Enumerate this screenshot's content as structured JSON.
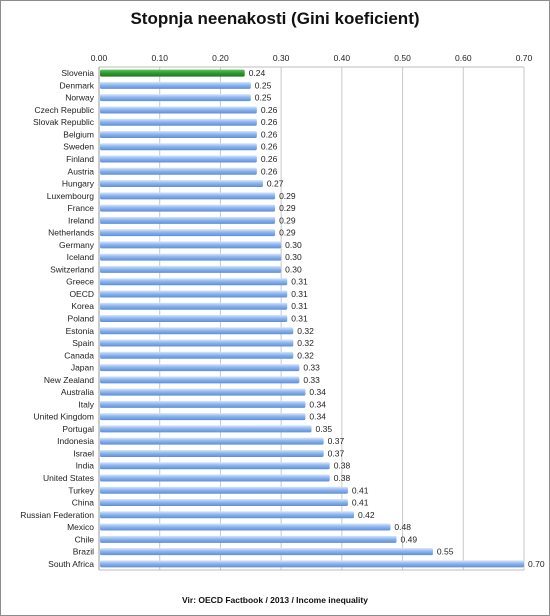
{
  "chart_data": {
    "type": "bar",
    "orientation": "horizontal",
    "title": "Stopnja neenakosti (Gini koeficient)",
    "source": "Vir: OECD Factbook / 2013 / Income inequality",
    "xlim": [
      0,
      0.7
    ],
    "xticks": [
      "0.00",
      "0.10",
      "0.20",
      "0.30",
      "0.40",
      "0.50",
      "0.60",
      "0.70"
    ],
    "grid": true,
    "highlight_color": "#2e9a2e",
    "bar_color": "#7ea9e8",
    "categories": [
      "Slovenia",
      "Denmark",
      "Norway",
      "Czech Republic",
      "Slovak Republic",
      "Belgium",
      "Sweden",
      "Finland",
      "Austria",
      "Hungary",
      "Luxembourg",
      "France",
      "Ireland",
      "Netherlands",
      "Germany",
      "Iceland",
      "Switzerland",
      "Greece",
      "OECD",
      "Korea",
      "Poland",
      "Estonia",
      "Spain",
      "Canada",
      "Japan",
      "New Zealand",
      "Australia",
      "Italy",
      "United Kingdom",
      "Portugal",
      "Indonesia",
      "Israel",
      "India",
      "United States",
      "Turkey",
      "China",
      "Russian Federation",
      "Mexico",
      "Chile",
      "Brazil",
      "South Africa"
    ],
    "values": [
      0.24,
      0.25,
      0.25,
      0.26,
      0.26,
      0.26,
      0.26,
      0.26,
      0.26,
      0.27,
      0.29,
      0.29,
      0.29,
      0.29,
      0.3,
      0.3,
      0.3,
      0.31,
      0.31,
      0.31,
      0.31,
      0.32,
      0.32,
      0.32,
      0.33,
      0.33,
      0.34,
      0.34,
      0.34,
      0.35,
      0.37,
      0.37,
      0.38,
      0.38,
      0.41,
      0.41,
      0.42,
      0.48,
      0.49,
      0.55,
      0.7
    ],
    "labels": [
      "0.24",
      "0.25",
      "0.25",
      "0.26",
      "0.26",
      "0.26",
      "0.26",
      "0.26",
      "0.26",
      "0.27",
      "0.29",
      "0.29",
      "0.29",
      "0.29",
      "0.30",
      "0.30",
      "0.30",
      "0.31",
      "0.31",
      "0.31",
      "0.31",
      "0.32",
      "0.32",
      "0.32",
      "0.33",
      "0.33",
      "0.34",
      "0.34",
      "0.34",
      "0.35",
      "0.37",
      "0.37",
      "0.38",
      "0.38",
      "0.41",
      "0.41",
      "0.42",
      "0.48",
      "0.49",
      "0.55",
      "0.70"
    ]
  }
}
